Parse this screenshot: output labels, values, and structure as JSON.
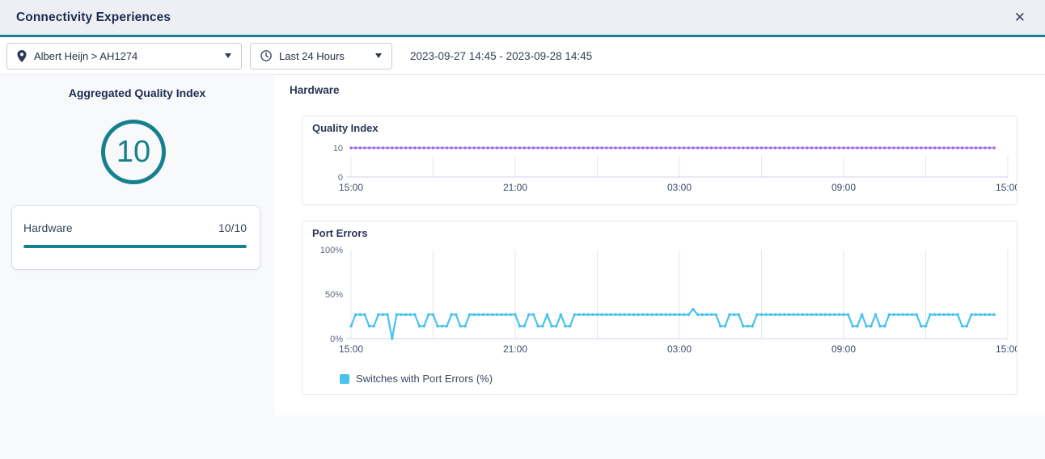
{
  "header": {
    "title": "Connectivity Experiences",
    "close_label": "✕"
  },
  "filters": {
    "site": {
      "icon": "location-pin",
      "value": "Albert Heijn > AH1274"
    },
    "time_range": {
      "icon": "clock",
      "value": "Last 24 Hours"
    },
    "date_range": "2023-09-27 14:45 - 2023-09-28 14:45"
  },
  "summary": {
    "title": "Aggregated Quality Index",
    "score": "10",
    "categories": [
      {
        "label": "Hardware",
        "score": "10/10",
        "progress": 1.0
      }
    ]
  },
  "section": {
    "title": "Hardware"
  },
  "colors": {
    "accent_teal": "#17808f",
    "navy_text": "#1d2b4f",
    "quality_line": "#9b6ae4",
    "port_errors_line": "#49c3ee",
    "header_bg": "#edeff4",
    "panel_bg": "#f8f9fb"
  },
  "chart_data": [
    {
      "id": "quality_index",
      "type": "line",
      "title": "Quality Index",
      "ylim": [
        0,
        10
      ],
      "y_ticks": [
        "10",
        "0"
      ],
      "x_axis": {
        "span_hours": 24,
        "gridline_interval_hours": 3,
        "tick_labels": [
          "15:00",
          "21:00",
          "03:00",
          "09:00",
          "15:00"
        ]
      },
      "series": [
        {
          "name": "Quality Index",
          "color": "#9b6ae4",
          "start_time": "15:00",
          "interval_minutes": 10,
          "constant_value": 10,
          "num_points": 142
        }
      ]
    },
    {
      "id": "port_errors",
      "type": "line",
      "title": "Port Errors",
      "ylim": [
        0,
        100
      ],
      "y_ticks": [
        "100%",
        "50%",
        "0%"
      ],
      "x_axis": {
        "span_hours": 24,
        "gridline_interval_hours": 3,
        "tick_labels": [
          "15:00",
          "21:00",
          "03:00",
          "09:00",
          "15:00"
        ]
      },
      "legend": [
        {
          "label": "Switches with Port Errors (%)",
          "color": "#49c3ee"
        }
      ],
      "series": [
        {
          "name": "Switches with Port Errors (%)",
          "color": "#49c3ee",
          "start_time": "15:00",
          "interval_minutes": 10,
          "values": [
            14,
            27,
            27,
            27,
            14,
            14,
            27,
            27,
            27,
            0,
            27,
            27,
            27,
            27,
            27,
            14,
            14,
            27,
            27,
            14,
            14,
            14,
            27,
            27,
            14,
            14,
            27,
            27,
            27,
            27,
            27,
            27,
            27,
            27,
            27,
            27,
            27,
            14,
            14,
            27,
            27,
            14,
            14,
            27,
            14,
            14,
            27,
            14,
            14,
            27,
            27,
            27,
            27,
            27,
            27,
            27,
            27,
            27,
            27,
            27,
            27,
            27,
            27,
            27,
            27,
            27,
            27,
            27,
            27,
            27,
            27,
            27,
            27,
            27,
            27,
            33,
            27,
            27,
            27,
            27,
            27,
            14,
            14,
            27,
            27,
            27,
            14,
            14,
            14,
            27,
            27,
            27,
            27,
            27,
            27,
            27,
            27,
            27,
            27,
            27,
            27,
            27,
            27,
            27,
            27,
            27,
            27,
            27,
            27,
            27,
            14,
            14,
            27,
            14,
            14,
            27,
            14,
            14,
            27,
            27,
            27,
            27,
            27,
            27,
            27,
            14,
            14,
            27,
            27,
            27,
            27,
            27,
            27,
            27,
            14,
            14,
            27,
            27,
            27,
            27,
            27,
            27
          ]
        }
      ]
    }
  ]
}
